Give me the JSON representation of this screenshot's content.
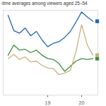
{
  "chart_data": {
    "type": "line",
    "title": "-time averages among viewers aged 25–54",
    "categories": [
      null,
      null,
      null,
      null,
      null,
      null,
      null,
      "19",
      null,
      null,
      null,
      null,
      null,
      "20",
      null,
      null
    ],
    "series": [
      {
        "color": "#1f67b1",
        "values": [
          94,
          76,
          73,
          79,
          70,
          75,
          65,
          57,
          61,
          63,
          68,
          75,
          86,
          98,
          92,
          87
        ]
      },
      {
        "color": "#3d8c3d",
        "values": [
          47,
          59,
          53,
          54,
          50,
          53,
          47,
          43,
          42,
          37,
          28,
          34,
          40,
          43,
          42,
          43
        ]
      },
      {
        "color": "#c8b27a",
        "values": [
          43,
          48,
          42,
          45,
          39,
          40,
          35,
          32,
          31,
          24,
          26,
          29,
          51,
          83,
          59,
          47
        ]
      }
    ],
    "ylim": [
      0,
      100
    ],
    "yticks": [],
    "tick_labels": "x",
    "marker": "square"
  }
}
